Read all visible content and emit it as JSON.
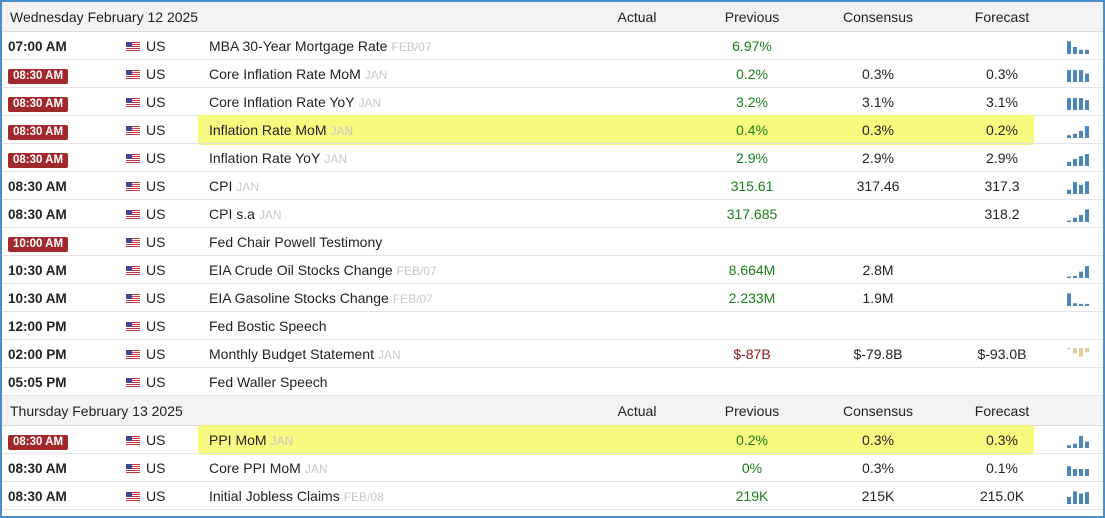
{
  "days": [
    {
      "header": {
        "date": "Wednesday February 12 2025",
        "actual": "Actual",
        "previous": "Previous",
        "consensus": "Consensus",
        "forecast": "Forecast"
      },
      "rows": [
        {
          "time": "07:00 AM",
          "badge": false,
          "country": "US",
          "event": "MBA 30-Year Mortgage Rate",
          "ref": "FEB/07",
          "actual": "",
          "previous": "6.97%",
          "prev_negative": false,
          "consensus": "",
          "forecast": "",
          "highlight": false,
          "spark": [
            0.9,
            0.5,
            0.3,
            0.3
          ],
          "spark_color": "#4a86b8"
        },
        {
          "time": "08:30 AM",
          "badge": true,
          "country": "US",
          "event": "Core Inflation Rate MoM",
          "ref": "JAN",
          "actual": "",
          "previous": "0.2%",
          "prev_negative": false,
          "consensus": "0.3%",
          "forecast": "0.3%",
          "highlight": false,
          "spark": [
            0.85,
            0.85,
            0.85,
            0.6
          ],
          "spark_color": "#4a86b8"
        },
        {
          "time": "08:30 AM",
          "badge": true,
          "country": "US",
          "event": "Core Inflation Rate YoY",
          "ref": "JAN",
          "actual": "",
          "previous": "3.2%",
          "prev_negative": false,
          "consensus": "3.1%",
          "forecast": "3.1%",
          "highlight": false,
          "spark": [
            0.85,
            0.85,
            0.85,
            0.7
          ],
          "spark_color": "#4a86b8"
        },
        {
          "time": "08:30 AM",
          "badge": true,
          "country": "US",
          "event": "Inflation Rate MoM",
          "ref": "JAN",
          "actual": "",
          "previous": "0.4%",
          "prev_negative": false,
          "consensus": "0.3%",
          "forecast": "0.2%",
          "highlight": true,
          "spark": [
            0.2,
            0.3,
            0.5,
            0.85
          ],
          "spark_color": "#4a86b8"
        },
        {
          "time": "08:30 AM",
          "badge": true,
          "country": "US",
          "event": "Inflation Rate YoY",
          "ref": "JAN",
          "actual": "",
          "previous": "2.9%",
          "prev_negative": false,
          "consensus": "2.9%",
          "forecast": "2.9%",
          "highlight": false,
          "spark": [
            0.3,
            0.5,
            0.7,
            0.85
          ],
          "spark_color": "#4a86b8"
        },
        {
          "time": "08:30 AM",
          "badge": false,
          "country": "US",
          "event": "CPI",
          "ref": "JAN",
          "actual": "",
          "previous": "315.61",
          "prev_negative": false,
          "consensus": "317.46",
          "forecast": "317.3",
          "highlight": false,
          "spark": [
            0.3,
            0.85,
            0.65,
            0.9
          ],
          "spark_color": "#4a86b8"
        },
        {
          "time": "08:30 AM",
          "badge": false,
          "country": "US",
          "event": "CPI s.a",
          "ref": "JAN",
          "actual": "",
          "previous": "317.685",
          "prev_negative": false,
          "consensus": "",
          "forecast": "318.2",
          "highlight": false,
          "spark": [
            0.1,
            0.3,
            0.5,
            0.9
          ],
          "spark_color": "#4a86b8"
        },
        {
          "time": "10:00 AM",
          "badge": true,
          "country": "US",
          "event": "Fed Chair Powell Testimony",
          "ref": "",
          "actual": "",
          "previous": "",
          "prev_negative": false,
          "consensus": "",
          "forecast": "",
          "highlight": false,
          "spark": [],
          "spark_color": "#4a86b8"
        },
        {
          "time": "10:30 AM",
          "badge": false,
          "country": "US",
          "event": "EIA Crude Oil Stocks Change",
          "ref": "FEB/07",
          "actual": "",
          "previous": "8.664M",
          "prev_negative": false,
          "consensus": "2.8M",
          "forecast": "",
          "highlight": false,
          "spark": [
            0.1,
            0.15,
            0.45,
            0.85
          ],
          "spark_color": "#4a86b8"
        },
        {
          "time": "10:30 AM",
          "badge": false,
          "country": "US",
          "event": "EIA Gasoline Stocks Change",
          "ref": "FEB/07",
          "actual": "",
          "previous": "2.233M",
          "prev_negative": false,
          "consensus": "1.9M",
          "forecast": "",
          "highlight": false,
          "spark": [
            0.9,
            0.2,
            0.15,
            0.15
          ],
          "spark_color": "#4a86b8"
        },
        {
          "time": "12:00 PM",
          "badge": false,
          "country": "US",
          "event": "Fed Bostic Speech",
          "ref": "",
          "actual": "",
          "previous": "",
          "prev_negative": false,
          "consensus": "",
          "forecast": "",
          "highlight": false,
          "spark": [],
          "spark_color": "#4a86b8"
        },
        {
          "time": "02:00 PM",
          "badge": false,
          "country": "US",
          "event": "Monthly Budget Statement",
          "ref": "JAN",
          "actual": "",
          "previous": "$-87B",
          "prev_negative": true,
          "consensus": "$-79.8B",
          "forecast": "$-93.0B",
          "highlight": false,
          "spark": [
            -0.1,
            -0.4,
            -0.6,
            -0.3
          ],
          "spark_color": "#e9c9a2"
        },
        {
          "time": "05:05 PM",
          "badge": false,
          "country": "US",
          "event": "Fed Waller Speech",
          "ref": "",
          "actual": "",
          "previous": "",
          "prev_negative": false,
          "consensus": "",
          "forecast": "",
          "highlight": false,
          "spark": [],
          "spark_color": "#4a86b8"
        }
      ]
    },
    {
      "header": {
        "date": "Thursday February 13 2025",
        "actual": "Actual",
        "previous": "Previous",
        "consensus": "Consensus",
        "forecast": "Forecast"
      },
      "rows": [
        {
          "time": "08:30 AM",
          "badge": true,
          "country": "US",
          "event": "PPI MoM",
          "ref": "JAN",
          "actual": "",
          "previous": "0.2%",
          "prev_negative": false,
          "consensus": "0.3%",
          "forecast": "0.3%",
          "highlight": true,
          "spark": [
            0.2,
            0.3,
            0.85,
            0.45
          ],
          "spark_color": "#4a86b8"
        },
        {
          "time": "08:30 AM",
          "badge": false,
          "country": "US",
          "event": "Core PPI MoM",
          "ref": "JAN",
          "actual": "",
          "previous": "0%",
          "prev_negative": false,
          "consensus": "0.3%",
          "forecast": "0.1%",
          "highlight": false,
          "spark": [
            0.7,
            0.5,
            0.5,
            0.5
          ],
          "spark_color": "#4a86b8"
        },
        {
          "time": "08:30 AM",
          "badge": false,
          "country": "US",
          "event": "Initial Jobless Claims",
          "ref": "FEB/08",
          "actual": "",
          "previous": "219K",
          "prev_negative": false,
          "consensus": "215K",
          "forecast": "215.0K",
          "highlight": false,
          "spark": [
            0.5,
            0.9,
            0.75,
            0.85
          ],
          "spark_color": "#4a86b8"
        }
      ]
    }
  ]
}
